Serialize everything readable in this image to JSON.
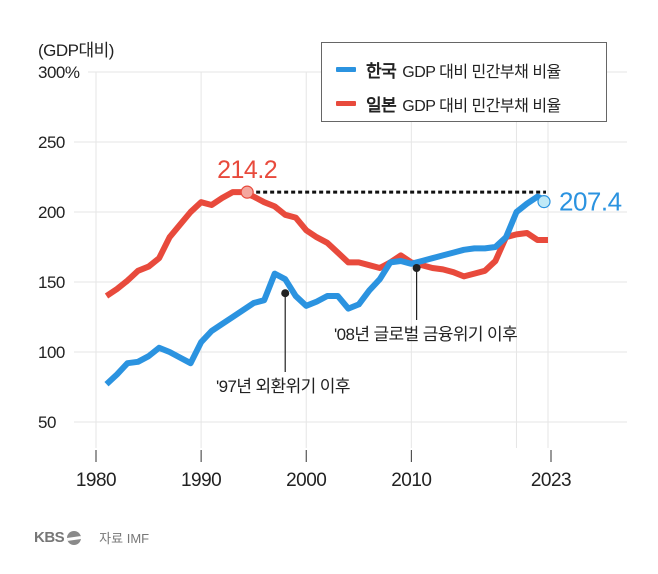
{
  "chart_data": {
    "type": "line",
    "title": "",
    "unit_label": "(GDP대비)",
    "xlabel": "",
    "ylabel": "(GDP대비)",
    "ylim": [
      25,
      300
    ],
    "xlim": [
      1980,
      2023
    ],
    "grid": true,
    "y_ticks": [
      {
        "value": 300,
        "label": "300%"
      },
      {
        "value": 250,
        "label": "250"
      },
      {
        "value": 200,
        "label": "200"
      },
      {
        "value": 150,
        "label": "150"
      },
      {
        "value": 100,
        "label": "100"
      },
      {
        "value": 50,
        "label": "50"
      }
    ],
    "x_ticks": [
      {
        "value": 1980,
        "label": "1980"
      },
      {
        "value": 1990,
        "label": "1990"
      },
      {
        "value": 2000,
        "label": "2000"
      },
      {
        "value": 2010,
        "label": "2010"
      },
      {
        "value": 2023,
        "label": "2023"
      }
    ],
    "x_grid": [
      1980,
      1990,
      2000,
      2010,
      2020,
      2023
    ],
    "legend_position": "top-right",
    "series": [
      {
        "name": "한국 GDP 대비 민간부채 비율",
        "country": "한국",
        "suffix": "GDP 대비 민간부채 비율",
        "color": "#2b93e0",
        "x": [
          1981,
          1982,
          1983,
          1984,
          1985,
          1986,
          1987,
          1988,
          1989,
          1990,
          1991,
          1992,
          1993,
          1994,
          1995,
          1996,
          1997,
          1998,
          1999,
          2000,
          2001,
          2002,
          2003,
          2004,
          2005,
          2006,
          2007,
          2008,
          2009,
          2010,
          2011,
          2012,
          2013,
          2014,
          2015,
          2016,
          2017,
          2018,
          2019,
          2020,
          2021,
          2022,
          2023
        ],
        "values": [
          77,
          84,
          92,
          93,
          97,
          103,
          100,
          96,
          92,
          107,
          115,
          120,
          125,
          130,
          135,
          137,
          156,
          152,
          140,
          133,
          136,
          140,
          140,
          131,
          134,
          144,
          152,
          164,
          165,
          163,
          165,
          167,
          169,
          171,
          173,
          174,
          174,
          175,
          182,
          200,
          206,
          211,
          207.4
        ]
      },
      {
        "name": "일본 GDP 대비 민간부채 비율",
        "country": "일본",
        "suffix": "GDP 대비 민간부채 비율",
        "color": "#e84a3c",
        "x": [
          1981,
          1982,
          1983,
          1984,
          1985,
          1986,
          1987,
          1988,
          1989,
          1990,
          1991,
          1992,
          1993,
          1994,
          1995,
          1996,
          1997,
          1998,
          1999,
          2000,
          2001,
          2002,
          2003,
          2004,
          2005,
          2006,
          2007,
          2008,
          2009,
          2010,
          2011,
          2012,
          2013,
          2014,
          2015,
          2016,
          2017,
          2018,
          2019,
          2020,
          2021,
          2022,
          2023
        ],
        "values": [
          140,
          145,
          151,
          158,
          161,
          167,
          182,
          191,
          200,
          207,
          205,
          210,
          214.2,
          214.2,
          211,
          207,
          204,
          198,
          196,
          187,
          182,
          178,
          171,
          164,
          164,
          162,
          160,
          164,
          169,
          164,
          162,
          160,
          159,
          157,
          154,
          156,
          158,
          165,
          182,
          184,
          185,
          180,
          180
        ]
      }
    ],
    "annotations": [
      {
        "label": "214.2",
        "series": 1,
        "x": 1994,
        "value": 214.2,
        "color": "#e84a3c"
      },
      {
        "label": "207.4",
        "series": 0,
        "x": 2023,
        "value": 207.4,
        "color": "#2b93e0"
      }
    ],
    "reference_line": {
      "from_x": 1994,
      "to_x": 2023,
      "value": 214.2,
      "style": "dotted"
    },
    "event_markers": [
      {
        "label": "'97년 외환위기 이후",
        "x": 1998,
        "value": 142
      },
      {
        "label": "'08년 글로벌 금융위기 이후",
        "x": 2010.5,
        "value": 160
      }
    ]
  },
  "footer": {
    "logo": "KBS",
    "source": "자료 IMF"
  }
}
